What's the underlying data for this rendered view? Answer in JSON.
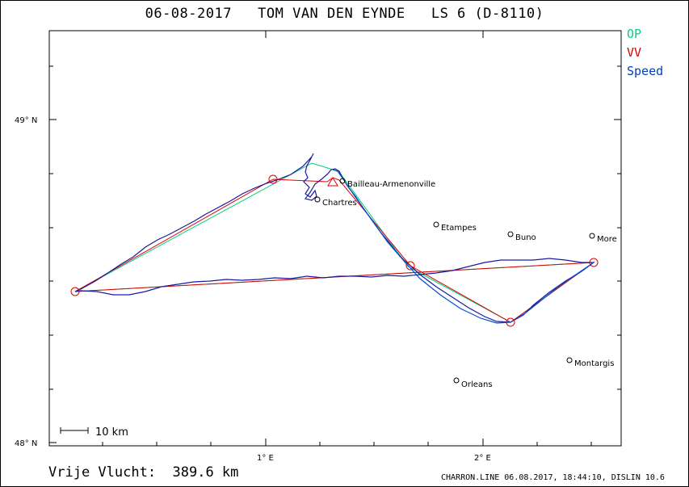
{
  "title": "06-08-2017   TOM VAN DEN EYNDE   LS 6 (D-8110)",
  "legend": {
    "op": {
      "label": "OP",
      "color": "#00d080"
    },
    "vv": {
      "label": "VV",
      "color": "#e00000"
    },
    "speed": {
      "label": "Speed",
      "color": "#0040c0"
    }
  },
  "axes": {
    "y_labels": [
      "49° N",
      "48° N"
    ],
    "x_labels": [
      "1° E",
      "2° E"
    ]
  },
  "places": [
    {
      "name": "Bailleau-Armenonville"
    },
    {
      "name": "Chartres"
    },
    {
      "name": "Etampes"
    },
    {
      "name": "Buno"
    },
    {
      "name": "More"
    },
    {
      "name": "Montargis"
    },
    {
      "name": "Orleans"
    }
  ],
  "scale_label": "10 km",
  "footer": {
    "distance": "Vrije Vlucht:  389.6 km",
    "program": "CHARRON.LINE 06.08.2017, 18:44:10, DISLIN 10.6"
  },
  "colors": {
    "track": "#1a1aa0",
    "track2": "#0050d0",
    "op": "#00d080",
    "vv": "#e00000"
  }
}
